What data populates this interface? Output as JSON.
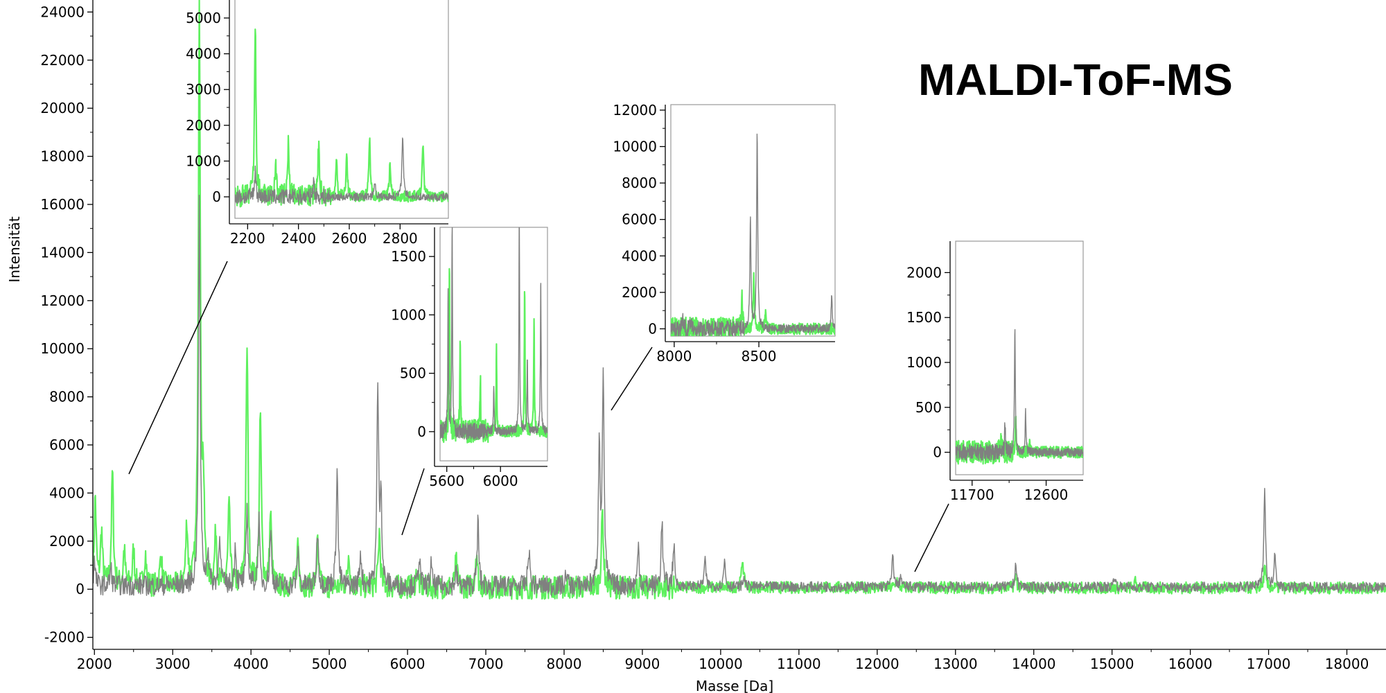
{
  "title": "MALDI-ToF-MS",
  "colors": {
    "grey": "#808080",
    "green": "#5ef05e",
    "dark_green": "#2e8b2e"
  },
  "chart_data": {
    "type": "line",
    "xlabel": "Masse [Da]",
    "ylabel": "Intensität",
    "xlim": [
      1980,
      18500
    ],
    "ylim": [
      -2500,
      24500
    ],
    "xticks": [
      2000,
      3000,
      4000,
      5000,
      6000,
      7000,
      8000,
      9000,
      10000,
      11000,
      12000,
      13000,
      14000,
      15000,
      16000,
      17000,
      18000
    ],
    "yticks": [
      -2000,
      0,
      2000,
      4000,
      6000,
      8000,
      10000,
      12000,
      14000,
      16000,
      18000,
      20000,
      22000,
      24000
    ],
    "grid": false,
    "legend": "none",
    "series": [
      {
        "color": "#808080",
        "baseline": 150,
        "peaks": [
          [
            2000,
            1000
          ],
          [
            2210,
            700
          ],
          [
            3340,
            16000
          ],
          [
            3450,
            1500
          ],
          [
            3600,
            2300
          ],
          [
            3800,
            1700
          ],
          [
            3950,
            3200
          ],
          [
            4100,
            2800
          ],
          [
            4250,
            2300
          ],
          [
            4600,
            1500
          ],
          [
            4850,
            2400
          ],
          [
            5100,
            5000
          ],
          [
            5400,
            1400
          ],
          [
            5620,
            8200
          ],
          [
            5660,
            3800
          ],
          [
            6150,
            1300
          ],
          [
            6300,
            900
          ],
          [
            6620,
            600
          ],
          [
            6900,
            2700
          ],
          [
            7550,
            1600
          ],
          [
            8030,
            600
          ],
          [
            8450,
            6200
          ],
          [
            8500,
            8800
          ],
          [
            8950,
            1700
          ],
          [
            9250,
            2700
          ],
          [
            9400,
            1800
          ],
          [
            9800,
            1100
          ],
          [
            10050,
            1100
          ],
          [
            10300,
            400
          ],
          [
            12200,
            1300
          ],
          [
            12300,
            450
          ],
          [
            13770,
            1000
          ],
          [
            15030,
            500
          ],
          [
            16950,
            4100
          ],
          [
            17080,
            1500
          ]
        ]
      },
      {
        "color": "#5ef05e",
        "baseline": 100,
        "peaks": [
          [
            2010,
            3700
          ],
          [
            2090,
            2300
          ],
          [
            2230,
            4800
          ],
          [
            2380,
            1500
          ],
          [
            2500,
            1500
          ],
          [
            2650,
            1400
          ],
          [
            2850,
            1400
          ],
          [
            3180,
            2600
          ],
          [
            3340,
            24500
          ],
          [
            3390,
            3800
          ],
          [
            3550,
            2300
          ],
          [
            3720,
            3300
          ],
          [
            3950,
            10000
          ],
          [
            4120,
            7100
          ],
          [
            4250,
            3000
          ],
          [
            4600,
            1900
          ],
          [
            4850,
            1800
          ],
          [
            5250,
            1500
          ],
          [
            5640,
            2300
          ],
          [
            6120,
            700
          ],
          [
            6620,
            1100
          ],
          [
            6880,
            1600
          ],
          [
            8490,
            3200
          ],
          [
            10280,
            1200
          ],
          [
            12250,
            350
          ],
          [
            13770,
            450
          ],
          [
            15300,
            250
          ],
          [
            16950,
            800
          ]
        ]
      }
    ],
    "insets": [
      {
        "xlim": [
          2150,
          2990
        ],
        "ylim": [
          -600,
          5600
        ],
        "xticks": [
          2200,
          2400,
          2600,
          2800
        ],
        "yticks": [
          0,
          1000,
          2000,
          3000,
          4000,
          5000
        ],
        "grey_peaks": [
          [
            2230,
            750
          ],
          [
            2810,
            1800
          ],
          [
            2460,
            400
          ],
          [
            2700,
            450
          ]
        ],
        "green_peaks": [
          [
            2230,
            4800
          ],
          [
            2360,
            1500
          ],
          [
            2480,
            1550
          ],
          [
            2590,
            1100
          ],
          [
            2680,
            1600
          ],
          [
            2890,
            1550
          ],
          [
            2310,
            900
          ],
          [
            2550,
            1000
          ],
          [
            2760,
            900
          ]
        ]
      },
      {
        "xlim": [
          5550,
          6350
        ],
        "ylim": [
          -250,
          1750
        ],
        "xticks": [
          5600,
          6000
        ],
        "yticks": [
          0,
          500,
          1000,
          1500
        ],
        "grey_peaks": [
          [
            5640,
            1800
          ],
          [
            5610,
            1200
          ],
          [
            6140,
            1900
          ],
          [
            6300,
            1300
          ],
          [
            6200,
            600
          ],
          [
            5950,
            400
          ]
        ],
        "green_peaks": [
          [
            5620,
            1400
          ],
          [
            5700,
            800
          ],
          [
            5970,
            700
          ],
          [
            6180,
            1200
          ],
          [
            6250,
            950
          ],
          [
            5850,
            450
          ]
        ]
      },
      {
        "xlim": [
          7980,
          8950
        ],
        "ylim": [
          -400,
          12300
        ],
        "xticks": [
          8000,
          8500
        ],
        "yticks": [
          0,
          2000,
          4000,
          6000,
          8000,
          10000,
          12000
        ],
        "grey_peaks": [
          [
            8450,
            6200
          ],
          [
            8490,
            10800
          ],
          [
            8930,
            1800
          ],
          [
            8050,
            700
          ],
          [
            8100,
            600
          ]
        ],
        "green_peaks": [
          [
            8470,
            3000
          ],
          [
            8400,
            1500
          ],
          [
            8540,
            1200
          ]
        ]
      },
      {
        "xlim": [
          11500,
          13050
        ],
        "ylim": [
          -250,
          2350
        ],
        "xticks": [
          11700,
          12600
        ],
        "yticks": [
          0,
          500,
          1000,
          1500,
          2000
        ],
        "grey_peaks": [
          [
            12220,
            1400
          ],
          [
            12350,
            450
          ],
          [
            12100,
            300
          ]
        ],
        "green_peaks": [
          [
            12230,
            380
          ],
          [
            12050,
            150
          ],
          [
            12400,
            150
          ]
        ]
      }
    ]
  }
}
